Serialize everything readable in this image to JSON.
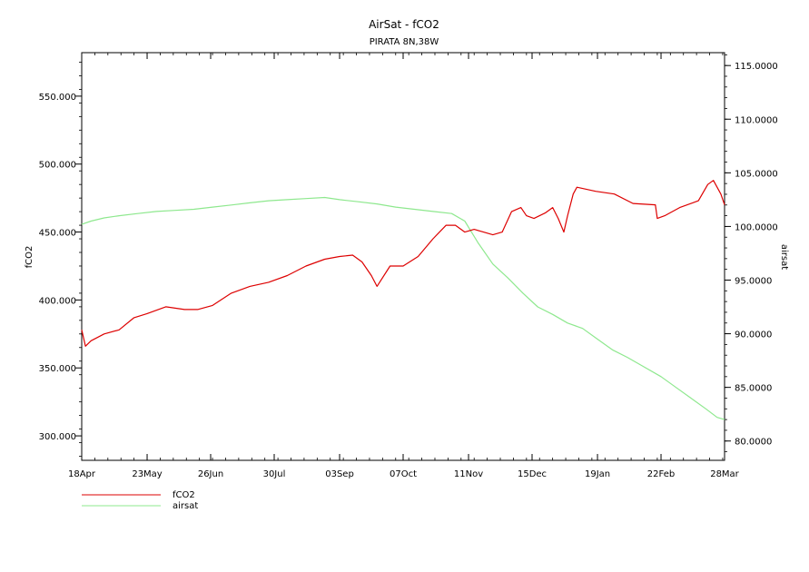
{
  "chart_data": {
    "type": "line",
    "title": "AirSat - fCO2",
    "subtitle": "PIRATA 8N,38W",
    "ylabel": "fCO2",
    "y2label": "airsat",
    "ylim": [
      282,
      582
    ],
    "y2lim": [
      78.2,
      116.2
    ],
    "xlim_days": [
      0,
      344
    ],
    "x_ticks": [
      {
        "label": "18Apr",
        "day": 0
      },
      {
        "label": "23May",
        "day": 35
      },
      {
        "label": "26Jun",
        "day": 69
      },
      {
        "label": "30Jul",
        "day": 103
      },
      {
        "label": "03Sep",
        "day": 138
      },
      {
        "label": "07Oct",
        "day": 172
      },
      {
        "label": "11Nov",
        "day": 207
      },
      {
        "label": "15Dec",
        "day": 241
      },
      {
        "label": "19Jan",
        "day": 276
      },
      {
        "label": "22Feb",
        "day": 310
      },
      {
        "label": "28Mar",
        "day": 344
      }
    ],
    "y_ticks": [
      {
        "label": "300.000",
        "value": 300
      },
      {
        "label": "350.000",
        "value": 350
      },
      {
        "label": "400.000",
        "value": 400
      },
      {
        "label": "450.000",
        "value": 450
      },
      {
        "label": "500.000",
        "value": 500
      },
      {
        "label": "550.000",
        "value": 550
      }
    ],
    "y2_ticks": [
      {
        "label": "80.0000",
        "value": 80
      },
      {
        "label": "85.0000",
        "value": 85
      },
      {
        "label": "90.0000",
        "value": 90
      },
      {
        "label": "95.0000",
        "value": 95
      },
      {
        "label": "100.0000",
        "value": 100
      },
      {
        "label": "105.0000",
        "value": 105
      },
      {
        "label": "110.0000",
        "value": 110
      },
      {
        "label": "115.0000",
        "value": 115
      }
    ],
    "series": [
      {
        "name": "fCO2",
        "axis": "left",
        "color": "#dd0000",
        "points": [
          [
            0,
            378
          ],
          [
            2,
            366
          ],
          [
            5,
            370
          ],
          [
            12,
            375
          ],
          [
            20,
            378
          ],
          [
            28,
            387
          ],
          [
            35,
            390
          ],
          [
            45,
            395
          ],
          [
            55,
            393
          ],
          [
            62,
            393
          ],
          [
            70,
            396
          ],
          [
            80,
            405
          ],
          [
            90,
            410
          ],
          [
            100,
            413
          ],
          [
            110,
            418
          ],
          [
            120,
            425
          ],
          [
            130,
            430
          ],
          [
            138,
            432
          ],
          [
            145,
            433
          ],
          [
            150,
            428
          ],
          [
            155,
            418
          ],
          [
            158,
            410
          ],
          [
            165,
            425
          ],
          [
            172,
            425
          ],
          [
            180,
            432
          ],
          [
            188,
            445
          ],
          [
            195,
            455
          ],
          [
            200,
            455
          ],
          [
            205,
            450
          ],
          [
            210,
            452
          ],
          [
            215,
            450
          ],
          [
            220,
            448
          ],
          [
            225,
            450
          ],
          [
            230,
            465
          ],
          [
            235,
            468
          ],
          [
            238,
            462
          ],
          [
            242,
            460
          ],
          [
            248,
            464
          ],
          [
            252,
            468
          ],
          [
            255,
            460
          ],
          [
            258,
            450
          ],
          [
            260,
            462
          ],
          [
            263,
            478
          ],
          [
            265,
            483
          ],
          [
            275,
            480
          ],
          [
            285,
            478
          ],
          [
            295,
            471
          ],
          [
            307,
            470
          ],
          [
            308,
            460
          ],
          [
            312,
            462
          ],
          [
            320,
            468
          ],
          [
            330,
            473
          ],
          [
            335,
            485
          ],
          [
            338,
            488
          ],
          [
            342,
            478
          ],
          [
            344,
            470
          ]
        ]
      },
      {
        "name": "airsat",
        "axis": "right",
        "color": "#8ee88e",
        "points": [
          [
            0,
            100.2
          ],
          [
            5,
            100.5
          ],
          [
            12,
            100.8
          ],
          [
            20,
            101.0
          ],
          [
            30,
            101.2
          ],
          [
            40,
            101.4
          ],
          [
            50,
            101.5
          ],
          [
            60,
            101.6
          ],
          [
            70,
            101.8
          ],
          [
            80,
            102.0
          ],
          [
            90,
            102.2
          ],
          [
            100,
            102.4
          ],
          [
            110,
            102.5
          ],
          [
            120,
            102.6
          ],
          [
            130,
            102.7
          ],
          [
            138,
            102.5
          ],
          [
            148,
            102.3
          ],
          [
            158,
            102.1
          ],
          [
            168,
            101.8
          ],
          [
            178,
            101.6
          ],
          [
            188,
            101.4
          ],
          [
            198,
            101.2
          ],
          [
            205,
            100.5
          ],
          [
            212,
            98.5
          ],
          [
            220,
            96.5
          ],
          [
            228,
            95.2
          ],
          [
            236,
            93.8
          ],
          [
            244,
            92.5
          ],
          [
            252,
            91.8
          ],
          [
            260,
            91.0
          ],
          [
            268,
            90.5
          ],
          [
            276,
            89.5
          ],
          [
            284,
            88.5
          ],
          [
            292,
            87.8
          ],
          [
            300,
            87.0
          ],
          [
            310,
            86.0
          ],
          [
            318,
            85.0
          ],
          [
            326,
            84.0
          ],
          [
            334,
            83.0
          ],
          [
            340,
            82.2
          ],
          [
            344,
            82.0
          ]
        ]
      }
    ],
    "grid": false,
    "legend_position": "bottom-left"
  }
}
